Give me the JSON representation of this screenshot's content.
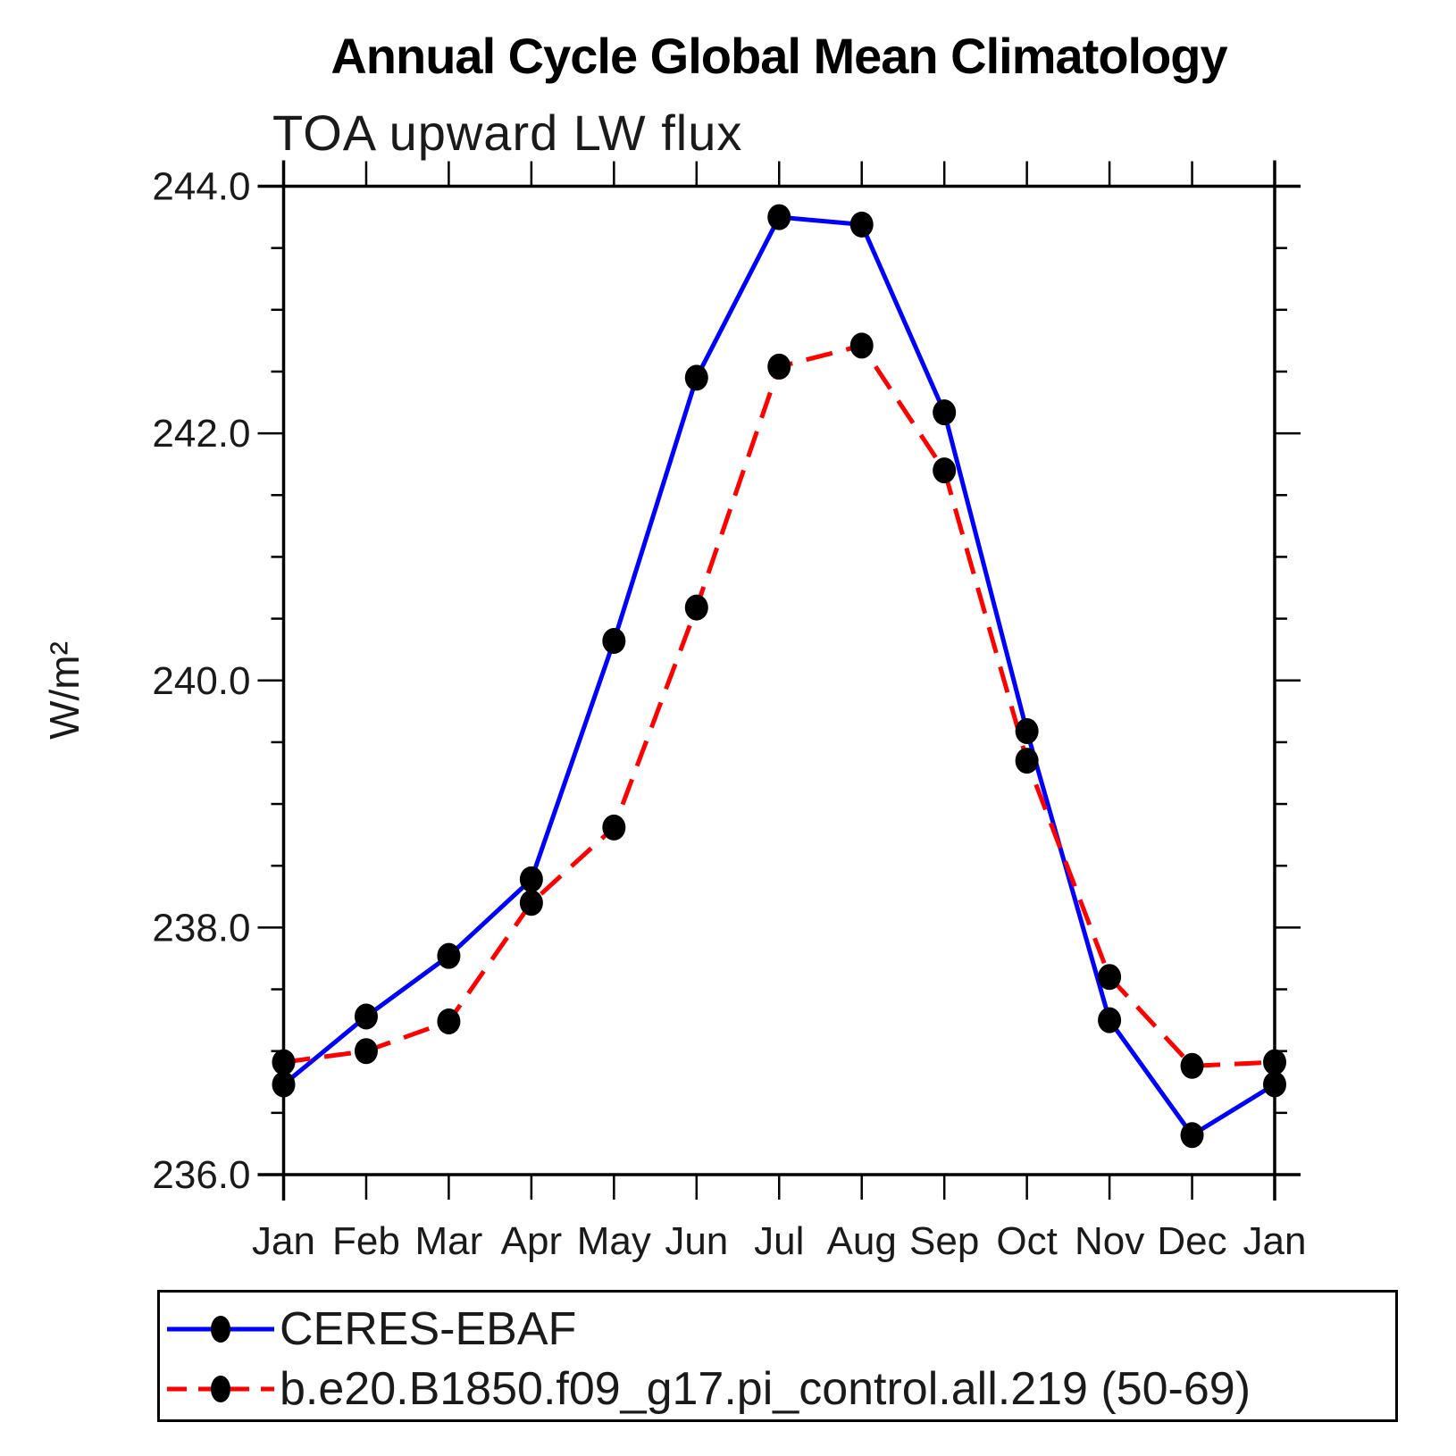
{
  "page": {
    "background": "#ffffff",
    "text_color": "#000000"
  },
  "chart_data": {
    "type": "line",
    "title": "Annual Cycle Global Mean Climatology",
    "subtitle": "TOA upward LW flux",
    "ylabel": "W/m²",
    "xlabel": "",
    "categories": [
      "Jan",
      "Feb",
      "Mar",
      "Apr",
      "May",
      "Jun",
      "Jul",
      "Aug",
      "Sep",
      "Oct",
      "Nov",
      "Dec",
      "Jan"
    ],
    "ylim": [
      236.0,
      244.0
    ],
    "ytick_major": [
      236.0,
      238.0,
      240.0,
      242.0,
      244.0
    ],
    "ytick_labels": [
      "236.0",
      "238.0",
      "240.0",
      "242.0",
      "244.0"
    ],
    "ytick_minor_step": 0.5,
    "grid": false,
    "frame_color": "#000000",
    "marker_color": "#000000",
    "legend_position": "bottom-left",
    "series": [
      {
        "name": "CERES-EBAF",
        "color": "#0000ff",
        "line_style": "solid",
        "marker": "filled-circle",
        "values": [
          236.73,
          237.28,
          237.77,
          238.39,
          240.32,
          242.45,
          243.75,
          243.69,
          242.17,
          239.59,
          237.25,
          236.32,
          236.73
        ]
      },
      {
        "name": "b.e20.B1850.f09_g17.pi_control.all.219 (50-69)",
        "color": "#ff0000",
        "line_style": "dashed",
        "marker": "filled-circle",
        "values": [
          236.91,
          237.0,
          237.24,
          238.2,
          238.81,
          240.59,
          242.54,
          242.71,
          241.7,
          239.35,
          237.6,
          236.88,
          236.91
        ]
      }
    ]
  }
}
